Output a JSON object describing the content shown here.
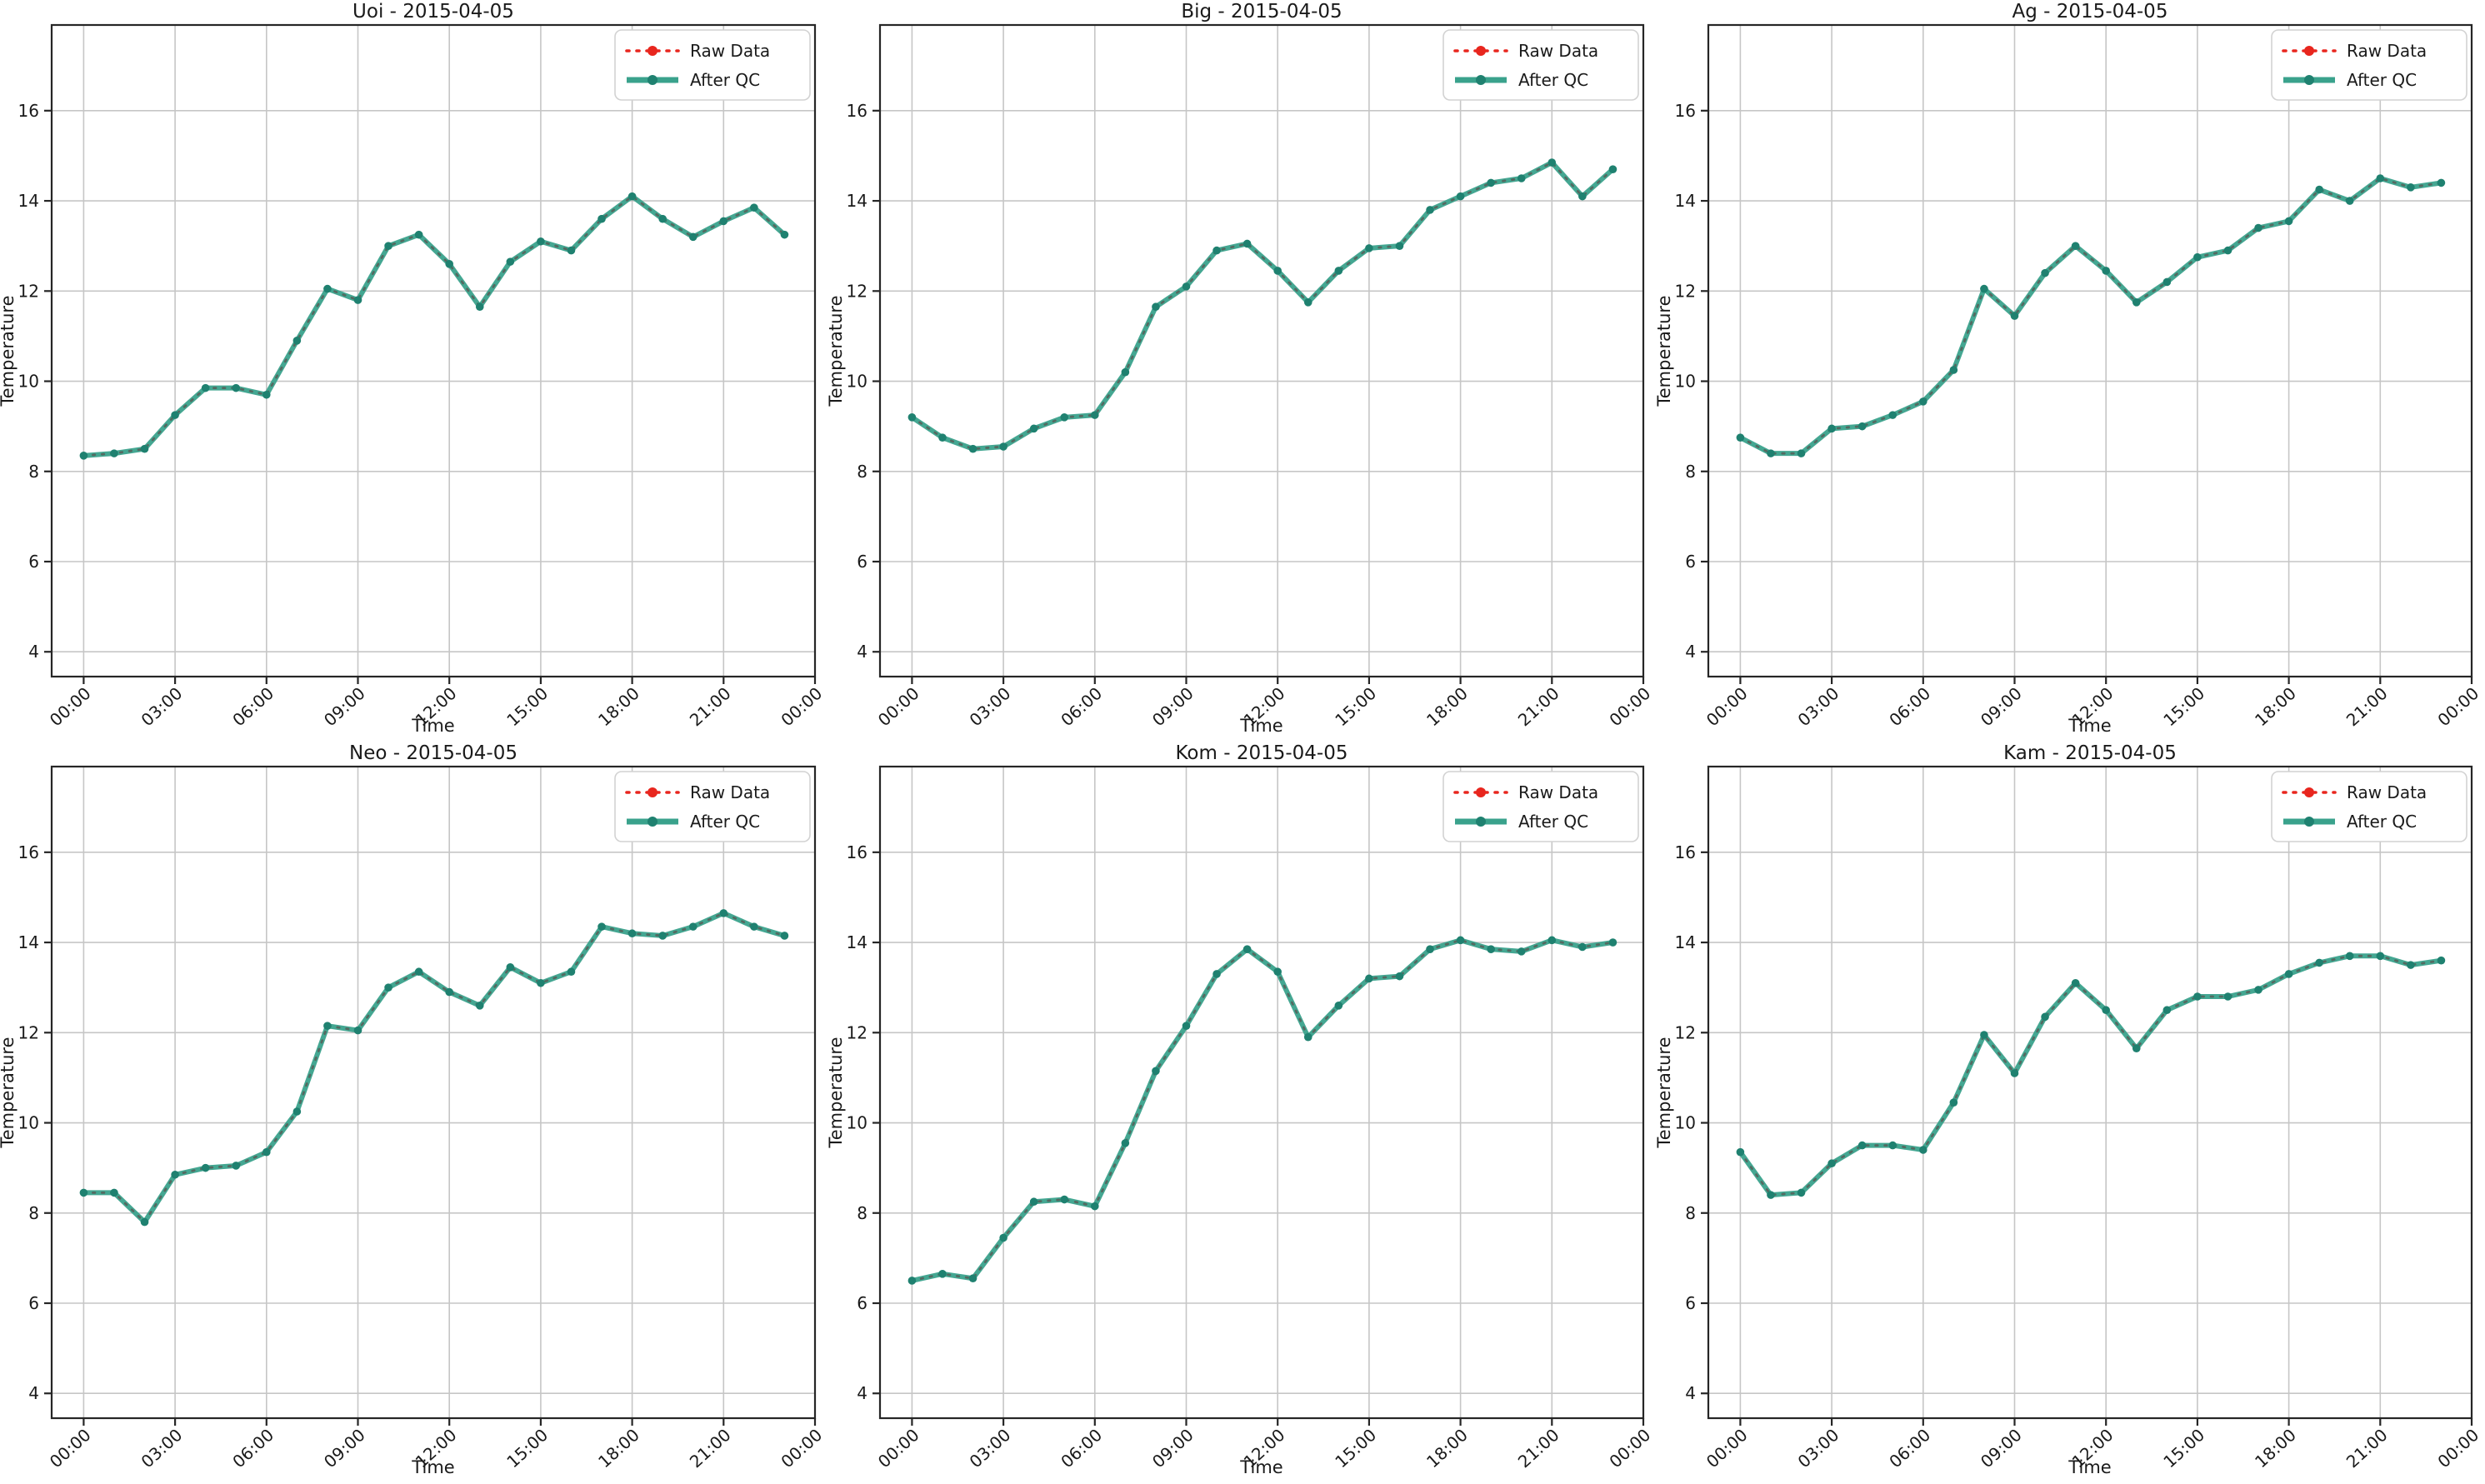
{
  "figure": {
    "background": "#ffffff",
    "date": "2015-04-05"
  },
  "axes_config": {
    "x_label": "Time",
    "y_label": "Temperature",
    "xlim": [
      -1.05,
      24
    ],
    "ylim": [
      3.45,
      17.9
    ],
    "xticks_hours": [
      0,
      3,
      6,
      9,
      12,
      15,
      18,
      21,
      24
    ],
    "xtick_labels": [
      "00:00",
      "03:00",
      "06:00",
      "09:00",
      "12:00",
      "15:00",
      "18:00",
      "21:00",
      "00:00"
    ],
    "yticks": [
      4,
      6,
      8,
      10,
      12,
      14,
      16
    ],
    "grid": true,
    "legend_position": "upper right"
  },
  "legend": {
    "raw_label": "Raw Data",
    "qc_label": "After QC"
  },
  "colors": {
    "raw": "#e8261e",
    "qc_line": "#3aa28c",
    "qc_marker": "#1f8170",
    "raw_overlay": "#55645c",
    "grid": "#c6c6c6",
    "spine": "#262626",
    "legend_border": "#d2d2d2",
    "text": "#1a1a1a"
  },
  "chart_data": [
    {
      "type": "line",
      "station": "Uoi",
      "title": "Uoi - 2015-04-05",
      "x_hours": [
        0,
        1,
        2,
        3,
        4,
        5,
        6,
        7,
        8,
        9,
        10,
        11,
        12,
        13,
        14,
        15,
        16,
        17,
        18,
        19,
        20,
        21,
        22,
        23
      ],
      "series": [
        {
          "name": "Raw Data",
          "values": [
            8.35,
            8.4,
            8.5,
            9.25,
            9.85,
            9.85,
            9.7,
            10.9,
            12.05,
            11.8,
            13.0,
            13.25,
            12.6,
            11.65,
            12.65,
            13.1,
            12.9,
            13.6,
            14.1,
            13.6,
            13.2,
            13.55,
            13.85,
            13.25
          ]
        },
        {
          "name": "After QC",
          "values": [
            8.35,
            8.4,
            8.5,
            9.25,
            9.85,
            9.85,
            9.7,
            10.9,
            12.05,
            11.8,
            13.0,
            13.25,
            12.6,
            11.65,
            12.65,
            13.1,
            12.9,
            13.6,
            14.1,
            13.6,
            13.2,
            13.55,
            13.85,
            13.25
          ]
        }
      ]
    },
    {
      "type": "line",
      "station": "Big",
      "title": "Big - 2015-04-05",
      "x_hours": [
        0,
        1,
        2,
        3,
        4,
        5,
        6,
        7,
        8,
        9,
        10,
        11,
        12,
        13,
        14,
        15,
        16,
        17,
        18,
        19,
        20,
        21,
        22,
        23
      ],
      "series": [
        {
          "name": "Raw Data",
          "values": [
            9.2,
            8.75,
            8.5,
            8.55,
            8.95,
            9.2,
            9.25,
            10.2,
            11.65,
            12.1,
            12.9,
            13.05,
            12.45,
            11.75,
            12.45,
            12.95,
            13.0,
            13.8,
            14.1,
            14.4,
            14.5,
            14.85,
            14.1,
            14.7
          ]
        },
        {
          "name": "After QC",
          "values": [
            9.2,
            8.75,
            8.5,
            8.55,
            8.95,
            9.2,
            9.25,
            10.2,
            11.65,
            12.1,
            12.9,
            13.05,
            12.45,
            11.75,
            12.45,
            12.95,
            13.0,
            13.8,
            14.1,
            14.4,
            14.5,
            14.85,
            14.1,
            14.7
          ]
        }
      ]
    },
    {
      "type": "line",
      "station": "Ag",
      "title": "Ag - 2015-04-05",
      "x_hours": [
        0,
        1,
        2,
        3,
        4,
        5,
        6,
        7,
        8,
        9,
        10,
        11,
        12,
        13,
        14,
        15,
        16,
        17,
        18,
        19,
        20,
        21,
        22,
        23
      ],
      "series": [
        {
          "name": "Raw Data",
          "values": [
            8.75,
            8.4,
            8.4,
            8.95,
            9.0,
            9.25,
            9.55,
            10.25,
            12.05,
            11.45,
            12.4,
            13.0,
            12.45,
            11.75,
            12.2,
            12.75,
            12.9,
            13.4,
            13.55,
            14.25,
            14.0,
            14.5,
            14.3,
            14.4
          ]
        },
        {
          "name": "After QC",
          "values": [
            8.75,
            8.4,
            8.4,
            8.95,
            9.0,
            9.25,
            9.55,
            10.25,
            12.05,
            11.45,
            12.4,
            13.0,
            12.45,
            11.75,
            12.2,
            12.75,
            12.9,
            13.4,
            13.55,
            14.25,
            14.0,
            14.5,
            14.3,
            14.4
          ]
        }
      ]
    },
    {
      "type": "line",
      "station": "Neo",
      "title": "Neo - 2015-04-05",
      "x_hours": [
        0,
        1,
        2,
        3,
        4,
        5,
        6,
        7,
        8,
        9,
        10,
        11,
        12,
        13,
        14,
        15,
        16,
        17,
        18,
        19,
        20,
        21,
        22,
        23
      ],
      "series": [
        {
          "name": "Raw Data",
          "values": [
            8.45,
            8.45,
            7.8,
            8.85,
            9.0,
            9.05,
            9.35,
            10.25,
            12.15,
            12.05,
            13.0,
            13.35,
            12.9,
            12.6,
            13.45,
            13.1,
            13.35,
            14.35,
            14.2,
            14.15,
            14.35,
            14.65,
            14.35,
            14.15
          ]
        },
        {
          "name": "After QC",
          "values": [
            8.45,
            8.45,
            7.8,
            8.85,
            9.0,
            9.05,
            9.35,
            10.25,
            12.15,
            12.05,
            13.0,
            13.35,
            12.9,
            12.6,
            13.45,
            13.1,
            13.35,
            14.35,
            14.2,
            14.15,
            14.35,
            14.65,
            14.35,
            14.15
          ]
        }
      ]
    },
    {
      "type": "line",
      "station": "Kom",
      "title": "Kom - 2015-04-05",
      "x_hours": [
        0,
        1,
        2,
        3,
        4,
        5,
        6,
        7,
        8,
        9,
        10,
        11,
        12,
        13,
        14,
        15,
        16,
        17,
        18,
        19,
        20,
        21,
        22,
        23
      ],
      "series": [
        {
          "name": "Raw Data",
          "values": [
            6.5,
            6.65,
            6.55,
            7.45,
            8.25,
            8.3,
            8.15,
            9.55,
            11.15,
            12.15,
            13.3,
            13.85,
            13.35,
            11.9,
            12.6,
            13.2,
            13.25,
            13.85,
            14.05,
            13.85,
            13.8,
            14.05,
            13.9,
            14.0
          ]
        },
        {
          "name": "After QC",
          "values": [
            6.5,
            6.65,
            6.55,
            7.45,
            8.25,
            8.3,
            8.15,
            9.55,
            11.15,
            12.15,
            13.3,
            13.85,
            13.35,
            11.9,
            12.6,
            13.2,
            13.25,
            13.85,
            14.05,
            13.85,
            13.8,
            14.05,
            13.9,
            14.0
          ]
        }
      ]
    },
    {
      "type": "line",
      "station": "Kam",
      "title": "Kam - 2015-04-05",
      "x_hours": [
        0,
        1,
        2,
        3,
        4,
        5,
        6,
        7,
        8,
        9,
        10,
        11,
        12,
        13,
        14,
        15,
        16,
        17,
        18,
        19,
        20,
        21,
        22,
        23
      ],
      "series": [
        {
          "name": "Raw Data",
          "values": [
            9.35,
            8.4,
            8.45,
            9.1,
            9.5,
            9.5,
            9.4,
            10.45,
            11.95,
            11.1,
            12.35,
            13.1,
            12.5,
            11.65,
            12.5,
            12.8,
            12.8,
            12.95,
            13.3,
            13.55,
            13.7,
            13.7,
            13.5,
            13.6
          ]
        },
        {
          "name": "After QC",
          "values": [
            9.35,
            8.4,
            8.45,
            9.1,
            9.5,
            9.5,
            9.4,
            10.45,
            11.95,
            11.1,
            12.35,
            13.1,
            12.5,
            11.65,
            12.5,
            12.8,
            12.8,
            12.95,
            13.3,
            13.55,
            13.7,
            13.7,
            13.5,
            13.6
          ]
        }
      ]
    }
  ]
}
